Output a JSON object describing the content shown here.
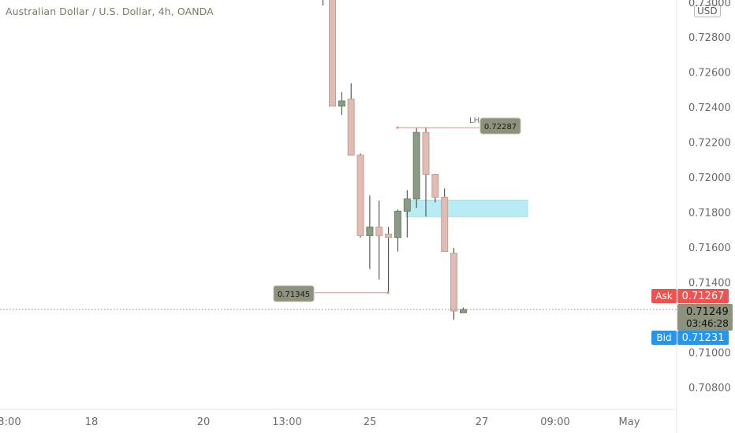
{
  "chart_data": {
    "type": "candlestick",
    "title": "Australian Dollar / U.S. Dollar, 4h, OANDA",
    "currency_unit": "USD",
    "ylim": [
      0.7065,
      0.7309
    ],
    "y_ticks": [
      "0.72800",
      "0.72600",
      "0.72400",
      "0.72200",
      "0.72000",
      "0.71800",
      "0.71600",
      "0.71400",
      "0.71000",
      "0.70800"
    ],
    "top_partial_tick": "0.73000",
    "x_ticks": [
      "3:00",
      "18",
      "20",
      "13:00",
      "25",
      "27",
      "09:00",
      "May"
    ],
    "candles": [
      {
        "o": 0.7309,
        "h": 0.7309,
        "l": 0.7241,
        "c": 0.7241
      },
      {
        "o": 0.7241,
        "h": 0.7249,
        "l": 0.7236,
        "c": 0.7244
      },
      {
        "o": 0.7245,
        "h": 0.7254,
        "l": 0.7213,
        "c": 0.7213
      },
      {
        "o": 0.7213,
        "h": 0.7214,
        "l": 0.7166,
        "c": 0.7167
      },
      {
        "o": 0.7167,
        "h": 0.719,
        "l": 0.7148,
        "c": 0.7172
      },
      {
        "o": 0.7172,
        "h": 0.7187,
        "l": 0.7142,
        "c": 0.7167
      },
      {
        "o": 0.7168,
        "h": 0.7172,
        "l": 0.71345,
        "c": 0.7166
      },
      {
        "o": 0.7166,
        "h": 0.7182,
        "l": 0.7158,
        "c": 0.7181
      },
      {
        "o": 0.7181,
        "h": 0.7193,
        "l": 0.7166,
        "c": 0.7188
      },
      {
        "o": 0.7188,
        "h": 0.72287,
        "l": 0.7183,
        "c": 0.7226
      },
      {
        "o": 0.7226,
        "h": 0.7229,
        "l": 0.7178,
        "c": 0.7202
      },
      {
        "o": 0.7202,
        "h": 0.7202,
        "l": 0.7186,
        "c": 0.7189
      },
      {
        "o": 0.7189,
        "h": 0.7194,
        "l": 0.7158,
        "c": 0.7158
      },
      {
        "o": 0.7157,
        "h": 0.716,
        "l": 0.7119,
        "c": 0.7124
      },
      {
        "o": 0.7123,
        "h": 0.7126,
        "l": 0.7123,
        "c": 0.71249
      }
    ],
    "zone": {
      "from": 0.71778,
      "to": 0.71873
    },
    "annotations": {
      "lower_high": {
        "label": "LH",
        "value": "0.72287"
      },
      "swing_low": {
        "value": "0.71345"
      }
    },
    "last_price": {
      "ask_label": "Ask",
      "ask": "0.71267",
      "price": "0.71249",
      "countdown": "03:46:28",
      "bid_label": "Bid",
      "bid": "0.71231"
    },
    "grid": false
  },
  "colors": {
    "up_body": "#8c9c84",
    "up_border": "#6e7e68",
    "down_body": "#e0bcb2",
    "down_border": "#c99d92",
    "wick": "#3a3a3a",
    "zone": "#b9ecf2",
    "ask": "#f05250",
    "bid": "#2196f3",
    "price_box": "#8c927c",
    "annotation_line": "#e8907e",
    "annotation_box": "#8c927c"
  }
}
